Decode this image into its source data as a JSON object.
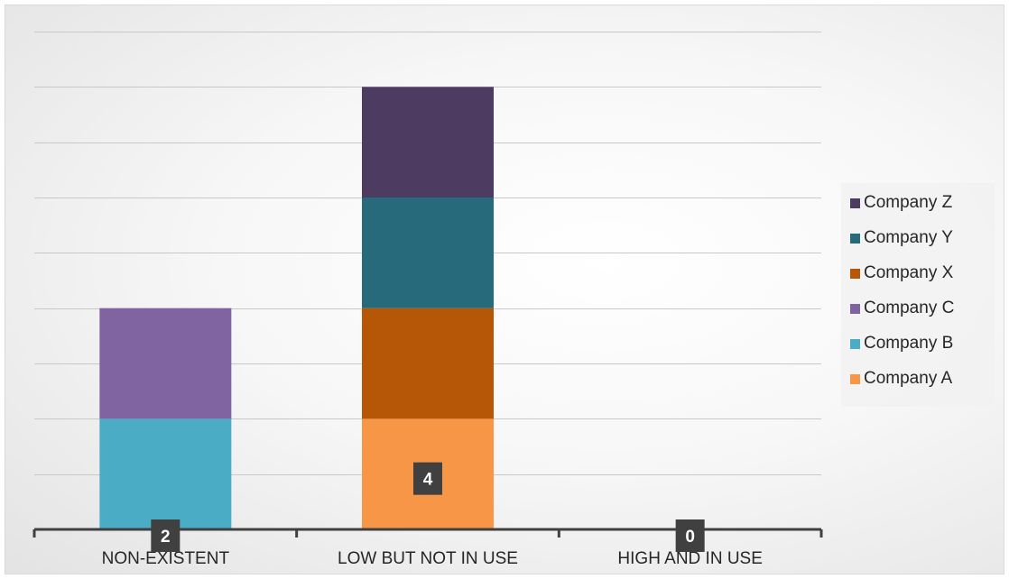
{
  "chart_data": {
    "type": "bar",
    "stacked": true,
    "title": "",
    "xlabel": "",
    "ylabel": "",
    "categories": [
      "NON-EXISTENT",
      "LOW BUT NOT IN USE",
      "HIGH AND IN USE"
    ],
    "ylim": [
      0,
      4.5
    ],
    "grid": true,
    "legend_position": "right",
    "series": [
      {
        "name": "Company A",
        "color": "#f79646",
        "values": [
          0,
          1,
          0
        ]
      },
      {
        "name": "Company B",
        "color": "#4bacc6",
        "values": [
          1,
          0,
          0
        ]
      },
      {
        "name": "Company C",
        "color": "#8064a2",
        "values": [
          1,
          0,
          0
        ]
      },
      {
        "name": "Company X",
        "color": "#b65708",
        "values": [
          0,
          1,
          0
        ]
      },
      {
        "name": "Company Y",
        "color": "#276a7c",
        "values": [
          0,
          1,
          0
        ]
      },
      {
        "name": "Company Z",
        "color": "#4d3b62",
        "values": [
          0,
          1,
          0
        ]
      }
    ],
    "data_labels": [
      "2",
      "4",
      "0"
    ]
  }
}
